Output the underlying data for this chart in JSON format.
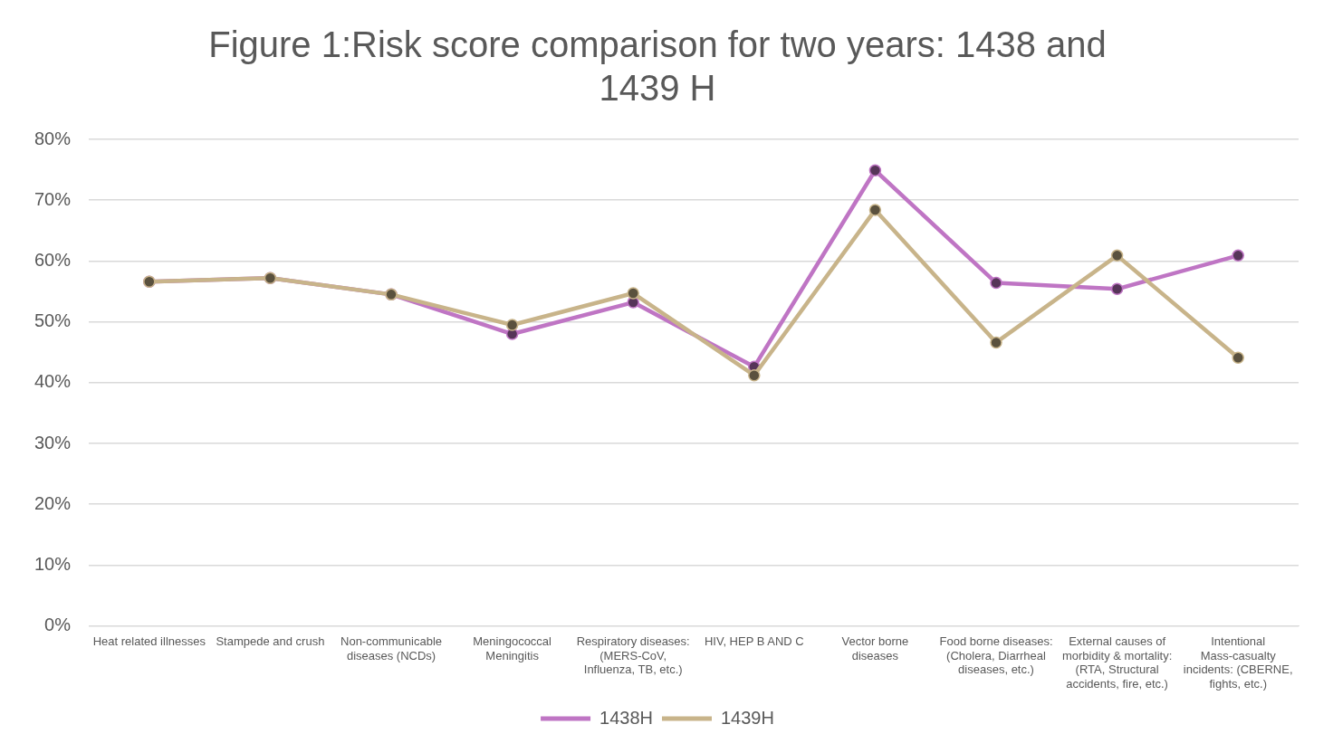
{
  "chart_data": {
    "type": "line",
    "title": "Figure 1:Risk score comparison for two years: 1438 and 1439 H",
    "categories": [
      "Heat related illnesses",
      "Stampede and crush",
      "Non-communicable diseases (NCDs)",
      "Meningococcal Meningitis",
      "Respiratory diseases: (MERS-CoV, Influenza, TB, etc.)",
      "HIV, HEP B AND C",
      "Vector borne diseases",
      "Food borne diseases: (Cholera, Diarrheal diseases, etc.)",
      "External causes of morbidity & mortality: (RTA, Structural accidents, fire, etc.)",
      "Intentional Mass-casualty incidents: (CBERNE, fights, etc.)"
    ],
    "series": [
      {
        "name": "1438H",
        "color": "#bf75c4",
        "values": [
          56.6,
          57.2,
          54.5,
          48.0,
          53.2,
          42.6,
          74.9,
          56.4,
          55.4,
          60.9
        ]
      },
      {
        "name": "1439H",
        "color": "#c8b48a",
        "values": [
          56.6,
          57.2,
          54.5,
          49.5,
          54.7,
          41.2,
          68.4,
          46.6,
          60.9,
          44.1
        ]
      }
    ],
    "ylim": [
      0,
      80
    ],
    "yticks": [
      {
        "value": 0,
        "label": "0%"
      },
      {
        "value": 10,
        "label": "10%"
      },
      {
        "value": 20,
        "label": "20%"
      },
      {
        "value": 30,
        "label": "30%"
      },
      {
        "value": 40,
        "label": "40%"
      },
      {
        "value": 50,
        "label": "50%"
      },
      {
        "value": 60,
        "label": "60%"
      },
      {
        "value": 70,
        "label": "70%"
      },
      {
        "value": 80,
        "label": "80%"
      }
    ],
    "grid": "y",
    "legend": "bottom",
    "marker": "circle",
    "line_style": "solid"
  }
}
